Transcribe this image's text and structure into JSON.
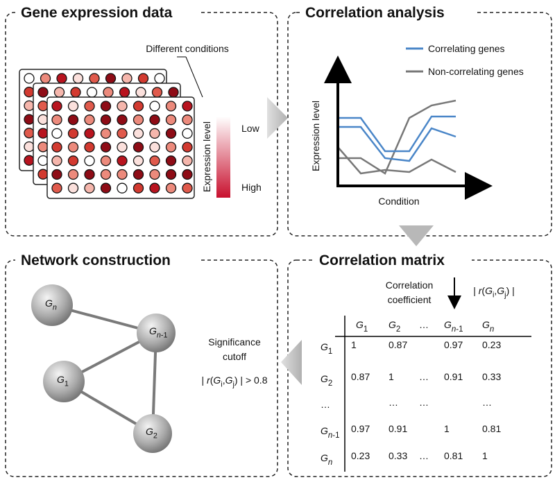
{
  "panels": [
    {
      "title": "Gene expression data",
      "labels": [
        "Different conditions",
        "Expression level",
        "Low",
        "High"
      ]
    },
    {
      "title": "Correlation analysis",
      "legend": [
        "Correlating genes",
        "Non-correlating genes"
      ],
      "y_label": "Expression level",
      "x_label": "Condition"
    },
    {
      "title": "Correlation matrix",
      "caption": [
        "Correlation",
        "coefficient"
      ],
      "formula": [
        {
          "text": "| "
        },
        {
          "text": "r",
          "style": "italic"
        },
        {
          "text": "("
        },
        {
          "text": "G",
          "style": "italic"
        },
        {
          "text": "i",
          "style": "sub"
        },
        {
          "text": ","
        },
        {
          "text": "G",
          "style": "italic"
        },
        {
          "text": "j",
          "style": "sub"
        },
        {
          "text": ") |"
        }
      ],
      "highlight_color": "#2e9e5b",
      "columns": [
        [
          {
            "text": "G",
            "style": "italic"
          },
          {
            "text": "1",
            "style": "sub"
          }
        ],
        [
          {
            "text": "G",
            "style": "italic"
          },
          {
            "text": "2",
            "style": "sub"
          }
        ],
        [
          {
            "text": "…"
          }
        ],
        [
          {
            "text": "G",
            "style": "italic"
          },
          {
            "text": "n",
            "style": "sub-italic"
          },
          {
            "text": "-1",
            "style": "sub"
          }
        ],
        [
          {
            "text": "G",
            "style": "italic"
          },
          {
            "text": "n",
            "style": "sub-italic"
          }
        ]
      ],
      "rows": [
        [
          {
            "text": "G",
            "style": "italic"
          },
          {
            "text": "1",
            "style": "sub"
          }
        ],
        [
          {
            "text": "G",
            "style": "italic"
          },
          {
            "text": "2",
            "style": "sub"
          }
        ],
        [
          {
            "text": "…"
          }
        ],
        [
          {
            "text": "G",
            "style": "italic"
          },
          {
            "text": "n",
            "style": "sub-italic"
          },
          {
            "text": "-1",
            "style": "sub"
          }
        ],
        [
          {
            "text": "G",
            "style": "italic"
          },
          {
            "text": "n",
            "style": "sub-italic"
          }
        ]
      ],
      "cells": [
        [
          "1",
          "0.87",
          null,
          "0.97",
          "0.23"
        ],
        [
          "0.87",
          "1",
          "…",
          "0.91",
          "0.33"
        ],
        [
          null,
          "…",
          "…",
          null,
          "…"
        ],
        [
          "0.97",
          "0.91",
          null,
          "1",
          "0.81"
        ],
        [
          "0.23",
          "0.33",
          "…",
          "0.81",
          "1"
        ]
      ]
    },
    {
      "title": "Network construction",
      "nodes": [
        [
          {
            "text": "G",
            "style": "italic"
          },
          {
            "text": "n",
            "style": "sub-italic"
          }
        ],
        [
          {
            "text": "G",
            "style": "italic"
          },
          {
            "text": "n",
            "style": "sub-italic"
          },
          {
            "text": "-1",
            "style": "sub"
          }
        ],
        [
          {
            "text": "G",
            "style": "italic"
          },
          {
            "text": "1",
            "style": "sub"
          }
        ],
        [
          {
            "text": "G",
            "style": "italic"
          },
          {
            "text": "2",
            "style": "sub"
          }
        ]
      ],
      "cutoff_label": [
        "Significance",
        "cutoff"
      ],
      "cutoff": [
        {
          "text": "| "
        },
        {
          "text": "r",
          "style": "italic"
        },
        {
          "text": "("
        },
        {
          "text": "G",
          "style": "italic"
        },
        {
          "text": "i",
          "style": "sub"
        },
        {
          "text": ","
        },
        {
          "text": "G",
          "style": "italic"
        },
        {
          "text": "j",
          "style": "sub"
        },
        {
          "text": ") | > 0.8"
        }
      ]
    }
  ]
}
